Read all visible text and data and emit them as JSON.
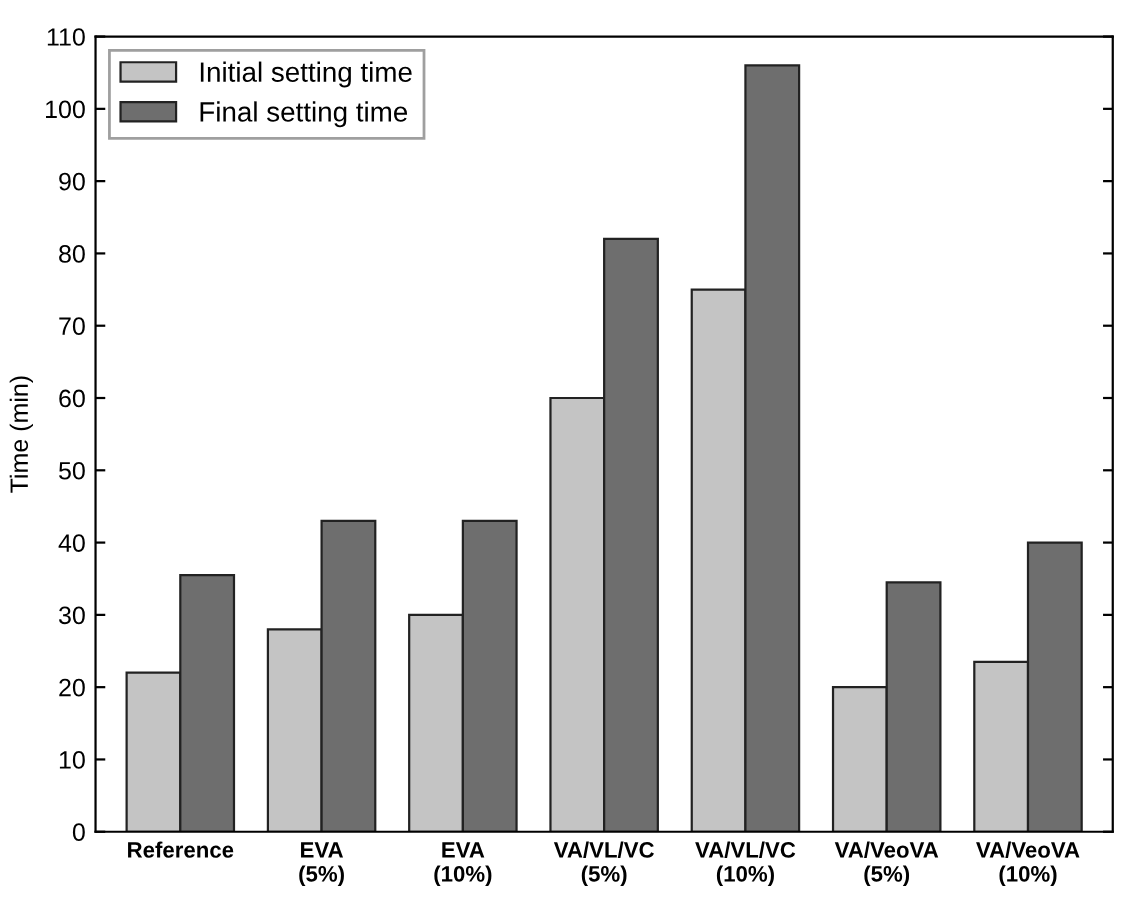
{
  "chart_data": {
    "type": "bar",
    "ylabel": "Time (min)",
    "categories": [
      "Reference",
      "EVA\n(5%)",
      "EVA\n(10%)",
      "VA/VL/VC\n(5%)",
      "VA/VL/VC\n(10%)",
      "VA/VeoVA\n(5%)",
      "VA/VeoVA\n(10%)"
    ],
    "series": [
      {
        "name": "Initial setting time",
        "color": "#c4c4c4",
        "values": [
          22,
          28,
          30,
          60,
          75,
          20,
          23.5
        ]
      },
      {
        "name": "Final setting time",
        "color": "#6e6e6e",
        "values": [
          35.5,
          43,
          43,
          82,
          106,
          34.5,
          40
        ]
      }
    ],
    "ylim": [
      0,
      110
    ],
    "yticks": [
      0,
      10,
      20,
      30,
      40,
      50,
      60,
      70,
      80,
      90,
      100,
      110
    ],
    "grid": false,
    "legend": "top left"
  }
}
